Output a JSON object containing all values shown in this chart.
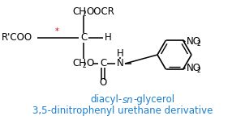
{
  "title_line1_a": "diacyl-",
  "title_line1_b": "sn",
  "title_line1_c": "-glycerol",
  "title_line2": "3,5-dinitrophenyl urethane derivative",
  "title_color": "#1a7fd4",
  "bg_color": "#ffffff",
  "text_color": "#000000",
  "red_color": "#cc0000",
  "figsize": [
    3.02,
    1.49
  ],
  "dpi": 100
}
